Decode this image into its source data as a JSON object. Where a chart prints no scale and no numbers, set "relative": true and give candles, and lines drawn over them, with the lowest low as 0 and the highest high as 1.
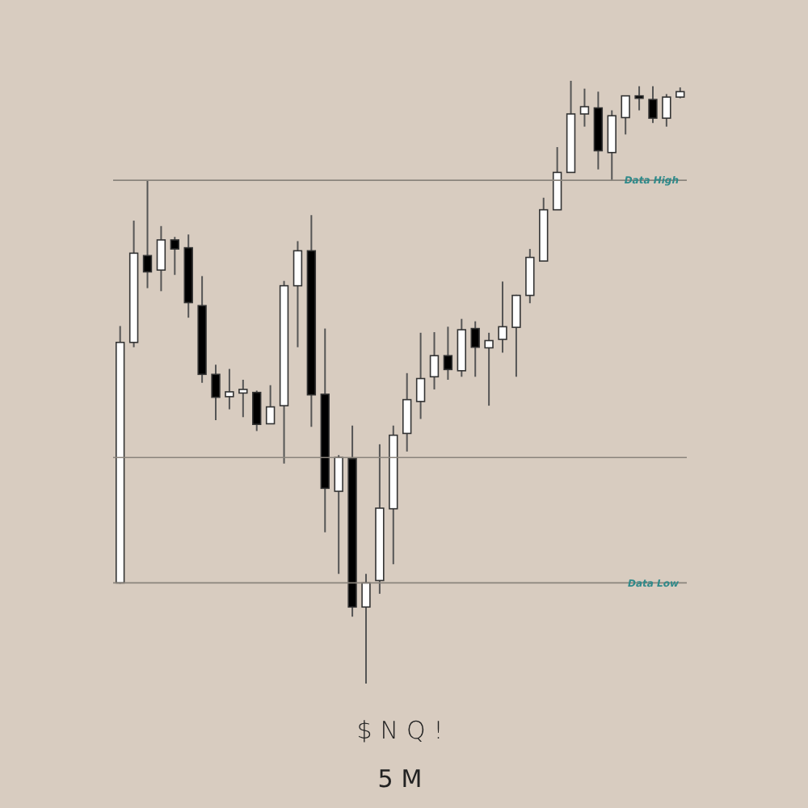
{
  "chart_data": {
    "type": "candlestick",
    "title": "$NQ!",
    "subtitle": "5M",
    "relative": true,
    "categories": [
      null,
      null,
      null,
      null,
      null,
      null,
      null,
      null,
      null,
      null,
      null,
      null,
      null,
      null,
      null,
      null,
      null,
      null,
      null,
      null,
      null,
      null,
      null,
      null,
      null,
      null,
      null,
      null,
      null,
      null,
      null,
      null,
      null,
      null,
      null,
      null,
      null,
      null,
      null,
      null,
      null,
      null
    ],
    "ohlc": [
      [
        0.167,
        0.593,
        0.166,
        0.566
      ],
      [
        0.566,
        0.768,
        0.558,
        0.714
      ],
      [
        0.71,
        0.835,
        0.656,
        0.683
      ],
      [
        0.686,
        0.759,
        0.651,
        0.736
      ],
      [
        0.736,
        0.741,
        0.678,
        0.721
      ],
      [
        0.723,
        0.745,
        0.607,
        0.632
      ],
      [
        0.627,
        0.676,
        0.499,
        0.513
      ],
      [
        0.513,
        0.529,
        0.437,
        0.475
      ],
      [
        0.476,
        0.522,
        0.455,
        0.484
      ],
      [
        0.482,
        0.504,
        0.442,
        0.488
      ],
      [
        0.483,
        0.486,
        0.419,
        0.43
      ],
      [
        0.431,
        0.495,
        0.431,
        0.459
      ],
      [
        0.461,
        0.668,
        0.365,
        0.66
      ],
      [
        0.66,
        0.734,
        0.558,
        0.718
      ],
      [
        0.718,
        0.777,
        0.426,
        0.479
      ],
      [
        0.48,
        0.589,
        0.251,
        0.324
      ],
      [
        0.319,
        0.379,
        0.182,
        0.375
      ],
      [
        0.373,
        0.428,
        0.111,
        0.127
      ],
      [
        0.127,
        0.182,
        0,
        0.167
      ],
      [
        0.171,
        0.397,
        0.149,
        0.291
      ],
      [
        0.29,
        0.428,
        0.198,
        0.412
      ],
      [
        0.415,
        0.515,
        0.385,
        0.471
      ],
      [
        0.468,
        0.582,
        0.439,
        0.506
      ],
      [
        0.509,
        0.583,
        0.488,
        0.544
      ],
      [
        0.544,
        0.592,
        0.504,
        0.521
      ],
      [
        0.519,
        0.605,
        0.509,
        0.587
      ],
      [
        0.589,
        0.601,
        0.509,
        0.558
      ],
      [
        0.557,
        0.582,
        0.461,
        0.569
      ],
      [
        0.571,
        0.667,
        0.549,
        0.592
      ],
      [
        0.591,
        0.645,
        0.509,
        0.644
      ],
      [
        0.644,
        0.721,
        0.631,
        0.707
      ],
      [
        0.701,
        0.806,
        0.701,
        0.786
      ],
      [
        0.786,
        0.89,
        0.786,
        0.848
      ],
      [
        0.848,
        1,
        0.848,
        0.945
      ],
      [
        0.945,
        0.987,
        0.924,
        0.957
      ],
      [
        0.955,
        0.982,
        0.853,
        0.884
      ],
      [
        0.881,
        0.951,
        0.835,
        0.942
      ],
      [
        0.939,
        0.975,
        0.911,
        0.975
      ],
      [
        0.975,
        0.991,
        0.951,
        0.971
      ],
      [
        0.969,
        0.991,
        0.93,
        0.938
      ],
      [
        0.938,
        0.978,
        0.924,
        0.973
      ],
      [
        0.973,
        0.989,
        0.971,
        0.982
      ]
    ],
    "ref_lines": [
      {
        "axis": "y",
        "value": 0.835,
        "label": "Data High"
      },
      {
        "axis": "y",
        "value": 0.167,
        "label": "Data Low"
      },
      {
        "axis": "y",
        "value": 0.375,
        "label": null
      }
    ]
  }
}
